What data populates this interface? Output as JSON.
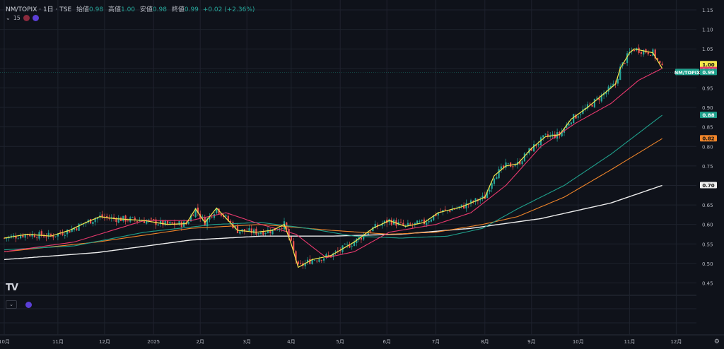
{
  "header": {
    "symbol": "NM/TOPIX · 1日 · TSE",
    "open_label": "始値",
    "open_value": "0.98",
    "high_label": "高値",
    "high_value": "1.00",
    "low_label": "安値",
    "low_value": "0.98",
    "close_label": "終値",
    "close_value": "0.99",
    "change": "+0.02 (+2.36%)",
    "indicator_count": "15"
  },
  "colors": {
    "background": "#0f121a",
    "grid": "#1e222d",
    "up": "#26a69a",
    "down": "#ef5350",
    "ma5": "#f5e84d",
    "ma25": "#e9396e",
    "ma75": "#1fa08c",
    "ma100": "#f0852a",
    "ma200": "#eeeeee"
  },
  "chart_data": {
    "type": "line",
    "ylim": [
      0.42,
      1.17
    ],
    "y_ticks": [
      "1.15",
      "1.10",
      "1.05",
      "1.00",
      "0.95",
      "0.90",
      "0.85",
      "0.80",
      "0.75",
      "0.70",
      "0.65",
      "0.60",
      "0.55",
      "0.50",
      "0.45"
    ],
    "x_labels": [
      "10月",
      "11月",
      "12月",
      "2025",
      "2月",
      "3月",
      "4月",
      "5月",
      "6月",
      "7月",
      "8月",
      "9月",
      "10月",
      "11月",
      "12月"
    ],
    "x_label_days": [
      0,
      23,
      43,
      64,
      84,
      104,
      123,
      144,
      164,
      185,
      206,
      226,
      246,
      268,
      288
    ],
    "last_day": 282,
    "price_key_days": [
      0,
      10,
      20,
      28,
      35,
      41,
      47,
      60,
      70,
      78,
      82,
      86,
      91,
      96,
      100,
      108,
      115,
      120,
      123,
      126,
      132,
      140,
      150,
      158,
      165,
      172,
      180,
      186,
      196,
      200,
      206,
      210,
      215,
      220,
      226,
      232,
      238,
      243,
      250,
      256,
      262,
      264,
      268,
      270,
      274,
      278,
      282
    ],
    "price_key_values": [
      0.565,
      0.575,
      0.57,
      0.585,
      0.605,
      0.62,
      0.615,
      0.61,
      0.6,
      0.602,
      0.64,
      0.605,
      0.642,
      0.61,
      0.585,
      0.58,
      0.585,
      0.6,
      0.55,
      0.49,
      0.51,
      0.52,
      0.555,
      0.59,
      0.61,
      0.595,
      0.605,
      0.63,
      0.645,
      0.655,
      0.67,
      0.725,
      0.75,
      0.755,
      0.795,
      0.825,
      0.83,
      0.87,
      0.9,
      0.93,
      0.96,
      1.0,
      1.04,
      1.05,
      1.045,
      1.04,
      1.0
    ],
    "series": [
      {
        "key": "ma5",
        "last_value": "1.00",
        "tag_bg": "#f5e84d",
        "tag_fg": "#111111"
      },
      {
        "key": "ma25",
        "last_value": "1.00",
        "tag_bg": "#e9396e",
        "tag_fg": "#ffffff"
      },
      {
        "key": "ma75",
        "last_value": "0.88",
        "tag_bg": "#1fa08c",
        "tag_fg": "#ffffff"
      },
      {
        "key": "ma100",
        "last_value": "0.82",
        "tag_bg": "#f0852a",
        "tag_fg": "#111111"
      },
      {
        "key": "ma200",
        "last_value": "0.70",
        "tag_bg": "#eeeeee",
        "tag_fg": "#111111"
      }
    ],
    "ma25_key_days": [
      0,
      30,
      60,
      80,
      95,
      110,
      125,
      138,
      150,
      165,
      185,
      200,
      215,
      230,
      245,
      260,
      272,
      282
    ],
    "ma25_key_values": [
      0.53,
      0.555,
      0.61,
      0.61,
      0.63,
      0.6,
      0.575,
      0.515,
      0.53,
      0.58,
      0.6,
      0.63,
      0.7,
      0.8,
      0.86,
      0.91,
      0.97,
      1.0
    ],
    "ma75_key_days": [
      0,
      30,
      60,
      90,
      110,
      130,
      150,
      170,
      190,
      205,
      220,
      240,
      260,
      282
    ],
    "ma75_key_values": [
      0.535,
      0.545,
      0.58,
      0.6,
      0.605,
      0.59,
      0.57,
      0.565,
      0.57,
      0.59,
      0.64,
      0.7,
      0.78,
      0.88
    ],
    "ma100_key_days": [
      0,
      40,
      80,
      110,
      140,
      165,
      185,
      205,
      220,
      240,
      260,
      282
    ],
    "ma100_key_values": [
      0.53,
      0.555,
      0.59,
      0.6,
      0.585,
      0.575,
      0.58,
      0.6,
      0.62,
      0.67,
      0.74,
      0.82
    ],
    "ma200_key_days": [
      0,
      40,
      80,
      110,
      140,
      170,
      200,
      230,
      260,
      282
    ],
    "ma200_key_values": [
      0.51,
      0.528,
      0.56,
      0.57,
      0.57,
      0.575,
      0.59,
      0.615,
      0.655,
      0.7
    ],
    "symbol_tag": "NM/TOPIX",
    "symbol_tag_value": "0.99",
    "current_price": 0.99
  }
}
